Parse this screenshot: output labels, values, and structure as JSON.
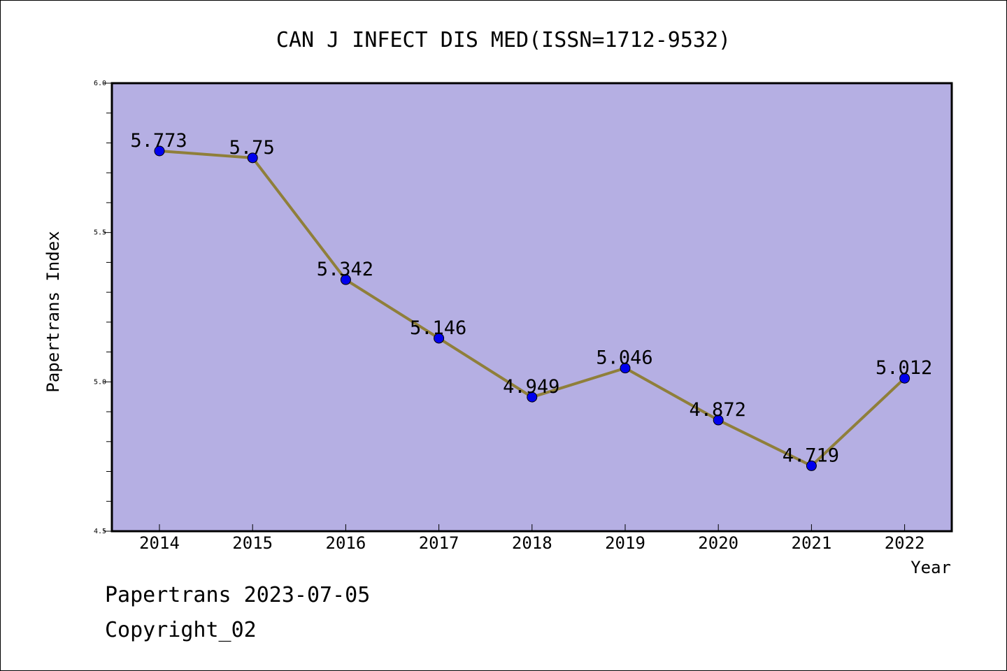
{
  "chart_data": {
    "type": "line",
    "title": "CAN J INFECT DIS MED(ISSN=1712-9532)",
    "xlabel": "Year",
    "ylabel": "Papertrans Index",
    "categories": [
      "2014",
      "2015",
      "2016",
      "2017",
      "2018",
      "2019",
      "2020",
      "2021",
      "2022"
    ],
    "series": [
      {
        "values": [
          5.773,
          5.75,
          5.342,
          5.146,
          4.949,
          5.046,
          4.872,
          4.719,
          5.012
        ],
        "labels": [
          "5.773",
          "5.75",
          "5.342",
          "5.146",
          "4.949",
          "5.046",
          "4.872",
          "4.719",
          "5.012"
        ]
      }
    ],
    "ylim": [
      4.5,
      6.0
    ],
    "yticks": [
      "4.5",
      "5.0",
      "5.5",
      "6.0"
    ],
    "grid": false,
    "colors": {
      "plot_background": "#b5afe3",
      "line": "#8f7f3a",
      "marker": "#0000ee"
    }
  },
  "footer": {
    "date_text": "Papertrans 2023-07-05",
    "copyright_text": "Copyright_02"
  }
}
